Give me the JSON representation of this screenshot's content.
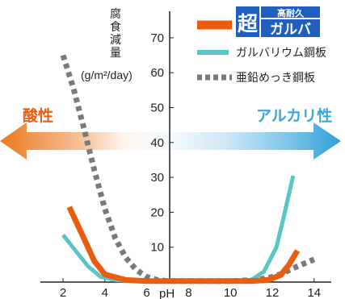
{
  "chart_data": {
    "type": "line",
    "ylabel": "腐食減量",
    "yunit": "(g/m²/day)",
    "xlabel": "pH",
    "xlim": [
      1,
      14.6
    ],
    "ylim": [
      0,
      75
    ],
    "xticks": [
      2,
      4,
      6,
      8,
      10,
      12,
      14
    ],
    "yticks": [
      10,
      20,
      30,
      40,
      50,
      60,
      70
    ],
    "acid_label": "酸性",
    "alkaline_label": "アルカリ性",
    "colors": {
      "acid": "#e85d10",
      "alkaline": "#3aa6db",
      "band_middle": "#eaf5fb"
    },
    "legend_placement": "top-right",
    "series": [
      {
        "name": "超高耐久ガルバ",
        "badge_main": "超",
        "badge_top": "高耐久",
        "badge_bottom": "ガルバ",
        "badge_color": "#1f5fbe",
        "color": "#e85d10",
        "style": "solid-thick",
        "x": [
          2.3,
          3.0,
          3.5,
          4.0,
          5.0,
          6.0,
          8.0,
          10.0,
          11.0,
          11.8,
          12.4,
          12.8,
          13.2
        ],
        "y": [
          21.5,
          12.5,
          6.0,
          2.2,
          0.6,
          0.3,
          0.3,
          0.3,
          0.3,
          0.6,
          2.0,
          5.0,
          9.0
        ]
      },
      {
        "name": "ガルバリウム鋼板",
        "color": "#5cc4c6",
        "style": "solid",
        "x": [
          2.0,
          2.6,
          3.2,
          3.8,
          4.5,
          6.0,
          8.0,
          10.0,
          11.0,
          11.6,
          12.2,
          12.6,
          13.0
        ],
        "y": [
          13.5,
          9.0,
          4.5,
          1.5,
          0.6,
          0.3,
          0.3,
          0.3,
          0.6,
          3.0,
          10.0,
          20.0,
          30.5
        ]
      },
      {
        "name": "亜鉛めっき鋼板",
        "color": "#7a7a7a",
        "style": "dotted",
        "x": [
          2.0,
          2.5,
          3.0,
          3.5,
          4.0,
          4.5,
          5.0,
          5.5,
          6.0,
          6.5,
          7.0,
          9.0,
          10.0,
          10.5,
          11.0,
          11.5,
          12.0,
          12.5,
          13.0,
          13.6,
          14.0
        ],
        "y": [
          65.0,
          55.5,
          44.0,
          32.0,
          21.0,
          12.5,
          7.0,
          3.5,
          1.5,
          0.6,
          0.3,
          0.3,
          0.3,
          0.4,
          0.6,
          0.9,
          1.5,
          2.5,
          4.0,
          5.5,
          6.5
        ]
      }
    ]
  }
}
